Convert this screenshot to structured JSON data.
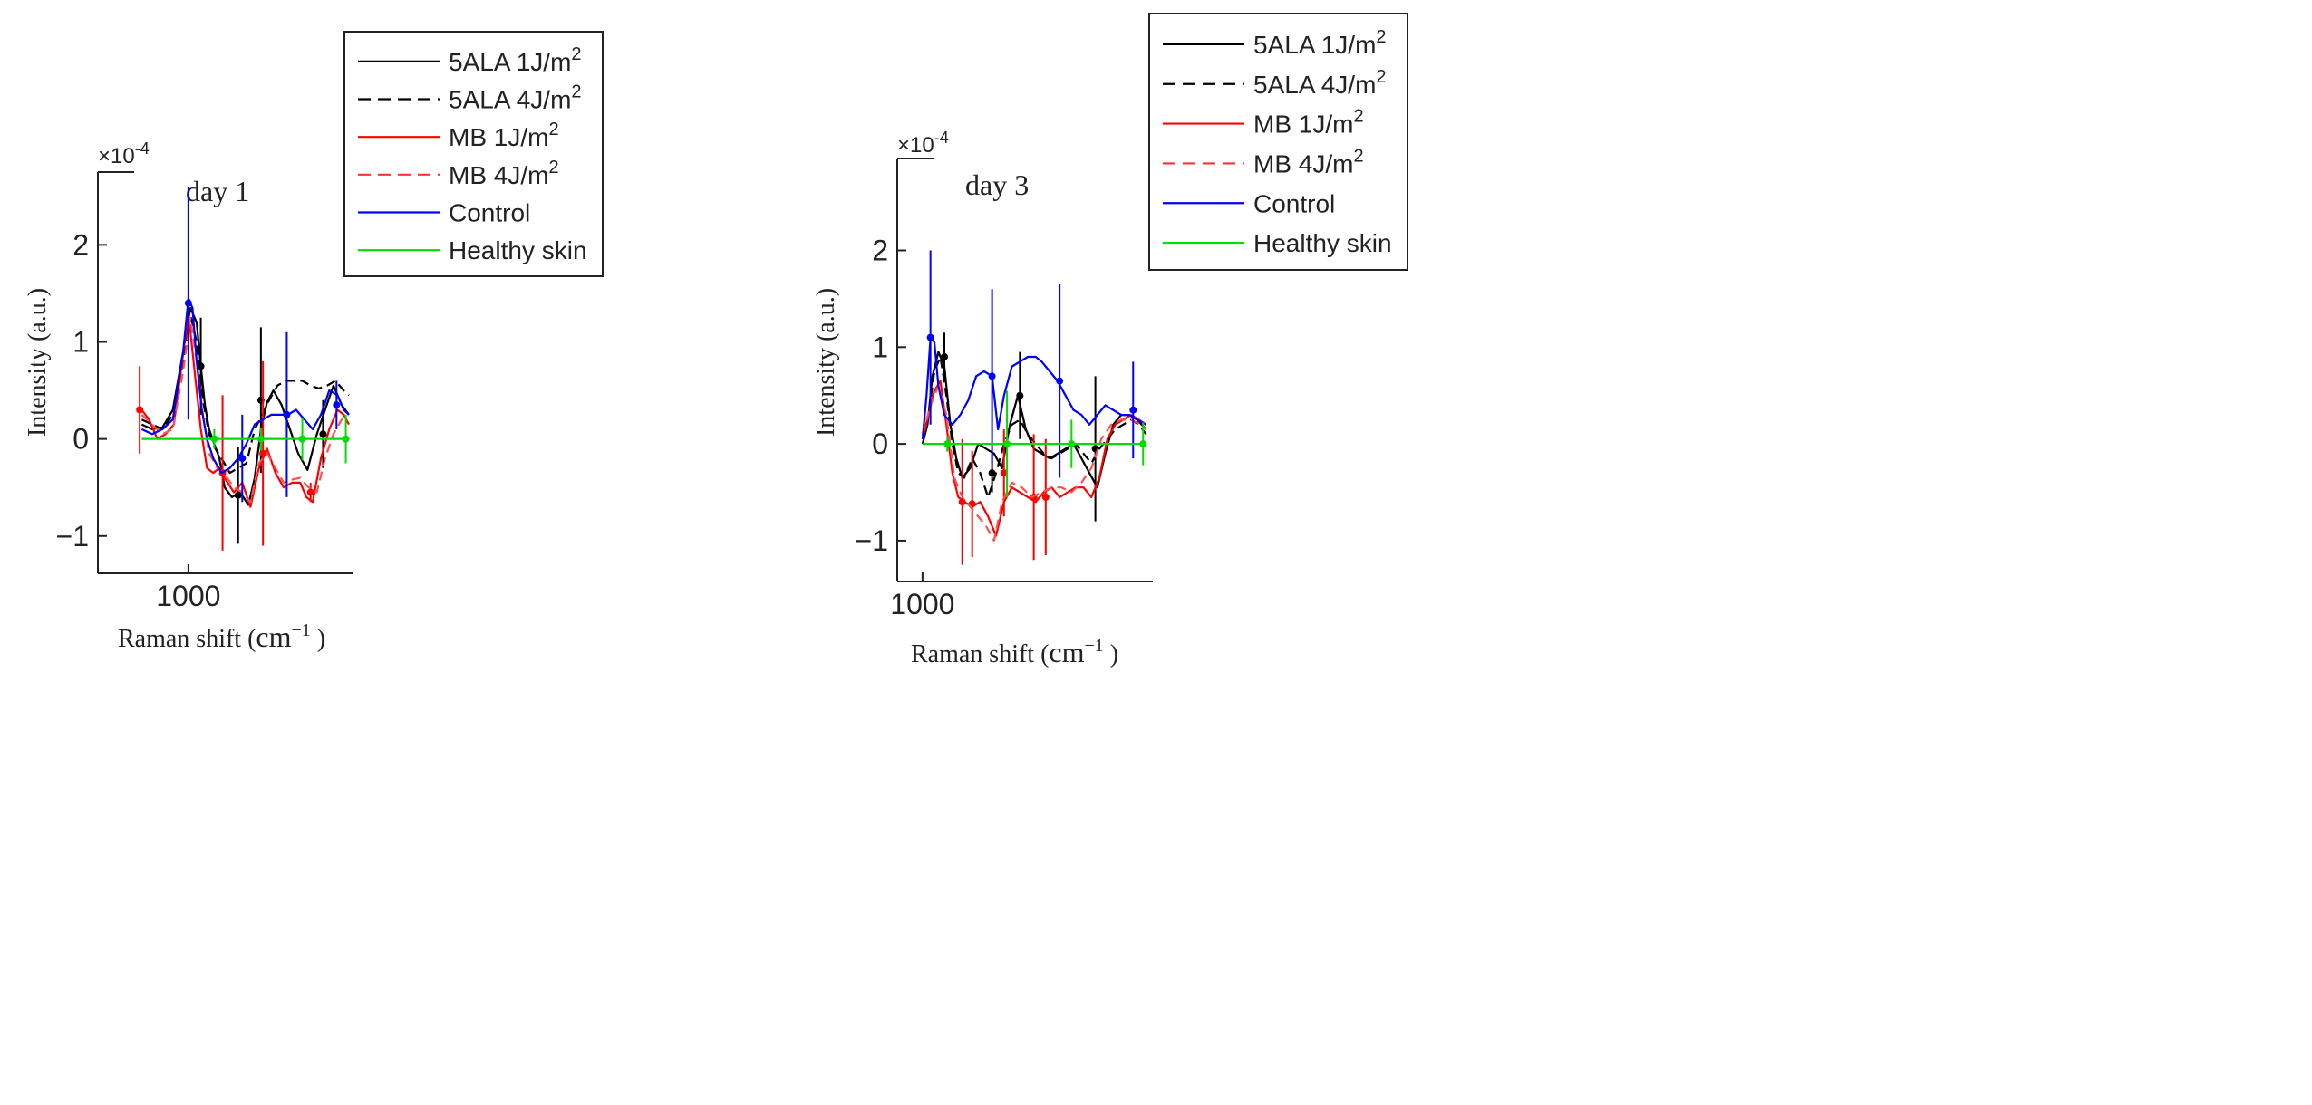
{
  "chart_data": [
    {
      "type": "line",
      "panel_label": "day 1",
      "multiplier_base": "×10",
      "multiplier_exp": "-4",
      "xlabel_main": "Raman shift (",
      "xlabel_unit": "cm",
      "xlabel_exp": "−1",
      "xlabel_close": " )",
      "ylabel": "Intensity (a.u.)",
      "xlim": [
        945,
        1155
      ],
      "ylim": [
        -1.45,
        2.75
      ],
      "xticks": [
        {
          "value": 1000,
          "label": "1000"
        }
      ],
      "yticks": [
        {
          "value": 2,
          "label": "2"
        },
        {
          "value": 1,
          "label": "1"
        },
        {
          "value": 0,
          "label": "0"
        },
        {
          "value": -1,
          "label": "−1"
        }
      ],
      "legend": [
        {
          "name": "5ALA 1J/m",
          "sup": "2",
          "color": "#000000",
          "dash": "solid"
        },
        {
          "name": "5ALA 4J/m",
          "sup": "2",
          "color": "#000000",
          "dash": "dashed"
        },
        {
          "name": "MB 1J/m",
          "sup": "2",
          "color": "#ff0000",
          "dash": "solid"
        },
        {
          "name": "MB 4J/m",
          "sup": "2",
          "color": "#ff3333",
          "dash": "dashed"
        },
        {
          "name": "Control",
          "sup": "",
          "color": "#0000ff",
          "dash": "solid"
        },
        {
          "name": "Healthy skin",
          "sup": "",
          "color": "#00e000",
          "dash": "solid"
        }
      ],
      "series": [
        {
          "name": "5ALA 1J/m2",
          "color": "#000000",
          "dash": "solid",
          "x": [
            955,
            965,
            975,
            985,
            995,
            1002,
            1008,
            1012,
            1016,
            1020,
            1025,
            1030,
            1035,
            1042,
            1050,
            1058,
            1064,
            1070,
            1076,
            1082,
            1090,
            1098,
            1106,
            1115,
            1124,
            1132,
            1140,
            1148,
            1155
          ],
          "y": [
            0.15,
            0.1,
            0.12,
            0.3,
            0.9,
            1.35,
            1.2,
            0.75,
            0.35,
            0.1,
            -0.05,
            -0.2,
            -0.5,
            -0.6,
            -0.55,
            -0.68,
            -0.4,
            0.1,
            0.38,
            0.5,
            0.35,
            0.1,
            -0.15,
            -0.32,
            0.05,
            0.3,
            0.55,
            0.35,
            0.25
          ],
          "error_x": [
            1012,
            1048,
            1070,
            1130
          ],
          "error_y": [
            0.75,
            -0.58,
            0.4,
            0.05
          ],
          "error_size": [
            0.5,
            0.5,
            0.75,
            0.35
          ]
        },
        {
          "name": "5ALA 4J/m2",
          "color": "#000000",
          "dash": "dashed",
          "x": [
            955,
            965,
            975,
            985,
            995,
            1002,
            1008,
            1014,
            1020,
            1026,
            1032,
            1040,
            1048,
            1056,
            1064,
            1070,
            1078,
            1086,
            1094,
            1102,
            1110,
            1118,
            1126,
            1134,
            1142,
            1150,
            1155
          ],
          "y": [
            0.2,
            0.15,
            0.1,
            0.25,
            0.8,
            1.28,
            1.0,
            0.4,
            0.05,
            -0.1,
            -0.2,
            -0.35,
            -0.3,
            -0.25,
            0.1,
            0.22,
            0.4,
            0.55,
            0.6,
            0.6,
            0.6,
            0.55,
            0.52,
            0.55,
            0.6,
            0.5,
            0.45
          ],
          "error_x": [],
          "error_y": [],
          "error_size": []
        },
        {
          "name": "MB 1J/m2",
          "color": "#ff0000",
          "dash": "solid",
          "x": [
            955,
            962,
            970,
            978,
            986,
            994,
            1000,
            1006,
            1012,
            1018,
            1024,
            1030,
            1036,
            1044,
            1052,
            1060,
            1068,
            1076,
            1084,
            1092,
            1100,
            1108,
            1114,
            1120,
            1128,
            1136,
            1144,
            1150,
            1155
          ],
          "y": [
            0.3,
            0.2,
            0.0,
            0.05,
            0.15,
            0.8,
            1.3,
            0.7,
            0.1,
            -0.3,
            -0.35,
            -0.3,
            -0.42,
            -0.55,
            -0.45,
            -0.7,
            -0.3,
            -0.1,
            -0.35,
            -0.5,
            -0.45,
            -0.45,
            -0.6,
            -0.65,
            -0.2,
            0.1,
            0.3,
            0.25,
            0.15
          ],
          "error_x": [
            953,
            1033,
            1072,
            1118
          ],
          "error_y": [
            0.3,
            -0.35,
            -0.15,
            -0.55
          ],
          "error_size": [
            0.45,
            0.8,
            0.95,
            0.1
          ]
        },
        {
          "name": "MB 4J/m2",
          "color": "#ff5050",
          "dash": "dashed",
          "x": [
            955,
            965,
            975,
            985,
            995,
            1002,
            1008,
            1014,
            1020,
            1028,
            1036,
            1044,
            1052,
            1060,
            1068,
            1076,
            1084,
            1092,
            1100,
            1108,
            1116,
            1124,
            1132,
            1140,
            1148,
            1155
          ],
          "y": [
            0.25,
            0.15,
            0.05,
            0.1,
            0.7,
            1.25,
            0.8,
            0.25,
            -0.15,
            -0.3,
            -0.38,
            -0.5,
            -0.55,
            -0.65,
            -0.25,
            -0.15,
            -0.3,
            -0.45,
            -0.42,
            -0.4,
            -0.5,
            -0.55,
            -0.2,
            0.05,
            0.2,
            0.2
          ],
          "error_x": [],
          "error_y": [],
          "error_size": []
        },
        {
          "name": "Control",
          "color": "#0000ff",
          "dash": "solid",
          "x": [
            955,
            965,
            975,
            985,
            995,
            1000,
            1004,
            1008,
            1013,
            1018,
            1024,
            1032,
            1040,
            1048,
            1056,
            1064,
            1072,
            1080,
            1088,
            1096,
            1104,
            1112,
            1120,
            1128,
            1136,
            1144,
            1150,
            1155
          ],
          "y": [
            0.1,
            0.05,
            0.1,
            0.2,
            0.9,
            1.45,
            1.35,
            0.8,
            0.3,
            0.0,
            -0.2,
            -0.35,
            -0.3,
            -0.2,
            -0.05,
            0.15,
            0.2,
            0.25,
            0.25,
            0.25,
            0.3,
            0.2,
            0.1,
            0.25,
            0.5,
            0.45,
            0.3,
            0.25
          ],
          "error_x": [
            1000,
            1052,
            1095,
            1143
          ],
          "error_y": [
            1.4,
            -0.2,
            0.25,
            0.35
          ],
          "error_size": [
            1.2,
            0.45,
            0.85,
            0.25
          ]
        },
        {
          "name": "Healthy skin",
          "color": "#00dd00",
          "dash": "solid",
          "x": [
            955,
            1155
          ],
          "y": [
            0,
            0
          ],
          "error_x": [
            1025,
            1070,
            1110,
            1152
          ],
          "error_y": [
            0,
            0,
            0,
            0
          ],
          "error_size": [
            0.1,
            0.12,
            0.22,
            0.25
          ]
        }
      ]
    },
    {
      "type": "line",
      "panel_label": "day 3",
      "multiplier_base": "×10",
      "multiplier_exp": "-4",
      "xlabel_main": "Raman shift (",
      "xlabel_unit": "cm",
      "xlabel_exp": "−1",
      "xlabel_close": " )",
      "ylabel": "Intensity (a.u.)",
      "xlim": [
        970,
        1230
      ],
      "ylim": [
        -1.45,
        2.95
      ],
      "xticks": [
        {
          "value": 1000,
          "label": "1000"
        }
      ],
      "yticks": [
        {
          "value": 2,
          "label": "2"
        },
        {
          "value": 1,
          "label": "1"
        },
        {
          "value": 0,
          "label": "0"
        },
        {
          "value": -1,
          "label": "−1"
        }
      ],
      "legend": [
        {
          "name": "5ALA 1J/m",
          "sup": "2",
          "color": "#000000",
          "dash": "solid"
        },
        {
          "name": "5ALA 4J/m",
          "sup": "2",
          "color": "#000000",
          "dash": "dashed"
        },
        {
          "name": "MB 1J/m",
          "sup": "2",
          "color": "#ff0000",
          "dash": "solid"
        },
        {
          "name": "MB 4J/m",
          "sup": "2",
          "color": "#ff3333",
          "dash": "dashed"
        },
        {
          "name": "Control",
          "sup": "",
          "color": "#0000ff",
          "dash": "solid"
        },
        {
          "name": "Healthy skin",
          "sup": "",
          "color": "#00e000",
          "dash": "solid"
        }
      ],
      "series": [
        {
          "name": "5ALA 1J/m2",
          "color": "#000000",
          "dash": "solid",
          "x": [
            1000,
            1005,
            1010,
            1016,
            1022,
            1028,
            1034,
            1040,
            1048,
            1056,
            1064,
            1072,
            1080,
            1088,
            1096,
            1104,
            1112,
            1120,
            1128,
            1136,
            1144,
            1152,
            1160,
            1168,
            1176,
            1184,
            1192,
            1200,
            1208,
            1216,
            1225
          ],
          "y": [
            0.0,
            0.2,
            0.7,
            0.95,
            0.8,
            0.2,
            -0.15,
            -0.35,
            -0.25,
            0.0,
            -0.05,
            -0.1,
            -0.25,
            0.2,
            0.5,
            0.15,
            -0.05,
            -0.1,
            -0.15,
            -0.1,
            -0.05,
            0.0,
            -0.15,
            -0.3,
            -0.45,
            -0.1,
            0.2,
            0.3,
            0.3,
            0.25,
            0.15
          ],
          "error_x": [
            1022,
            1098,
            1174
          ],
          "error_y": [
            0.9,
            0.5,
            -0.05
          ],
          "error_size": [
            0.25,
            0.45,
            0.75
          ]
        },
        {
          "name": "5ALA 4J/m2",
          "color": "#000000",
          "dash": "dashed",
          "x": [
            1000,
            1006,
            1012,
            1018,
            1024,
            1030,
            1036,
            1042,
            1050,
            1058,
            1066,
            1074,
            1082,
            1090,
            1098,
            1106,
            1114,
            1122,
            1130,
            1138,
            1146,
            1154,
            1162,
            1170,
            1178,
            1186,
            1194,
            1202,
            1210,
            1218,
            1225
          ],
          "y": [
            0.05,
            0.3,
            0.75,
            0.9,
            0.5,
            0.0,
            -0.3,
            -0.35,
            -0.15,
            -0.3,
            -0.55,
            -0.3,
            0.0,
            0.2,
            0.25,
            0.1,
            0.0,
            -0.1,
            -0.15,
            -0.1,
            -0.05,
            0.0,
            -0.1,
            -0.2,
            -0.05,
            0.05,
            0.15,
            0.2,
            0.25,
            0.2,
            0.1
          ],
          "error_x": [
            1070
          ],
          "error_y": [
            -0.3
          ],
          "error_size": [
            0.2
          ]
        },
        {
          "name": "MB 1J/m2",
          "color": "#ff0000",
          "dash": "solid",
          "x": [
            1000,
            1006,
            1012,
            1018,
            1024,
            1030,
            1036,
            1042,
            1050,
            1058,
            1066,
            1074,
            1082,
            1090,
            1098,
            1106,
            1114,
            1122,
            1130,
            1138,
            1146,
            1154,
            1162,
            1170,
            1178,
            1186,
            1194,
            1202,
            1210,
            1218,
            1225
          ],
          "y": [
            0.05,
            0.3,
            0.55,
            0.65,
            0.2,
            -0.3,
            -0.55,
            -0.6,
            -0.65,
            -0.6,
            -0.75,
            -0.95,
            -0.6,
            -0.45,
            -0.5,
            -0.55,
            -0.6,
            -0.5,
            -0.45,
            -0.55,
            -0.5,
            -0.45,
            -0.45,
            -0.55,
            -0.35,
            0.05,
            0.2,
            0.25,
            0.3,
            0.25,
            0.2
          ],
          "error_x": [
            1040,
            1050,
            1082,
            1112,
            1124
          ],
          "error_y": [
            -0.6,
            -0.62,
            -0.3,
            -0.55,
            -0.55
          ],
          "error_size": [
            0.65,
            0.55,
            0.45,
            0.65,
            0.6
          ]
        },
        {
          "name": "MB 4J/m2",
          "color": "#ff5050",
          "dash": "dashed",
          "x": [
            1000,
            1008,
            1016,
            1024,
            1032,
            1040,
            1048,
            1056,
            1064,
            1072,
            1080,
            1090,
            1100,
            1110,
            1120,
            1130,
            1140,
            1150,
            1160,
            1170,
            1180,
            1190,
            1200,
            1210,
            1220,
            1225
          ],
          "y": [
            0.1,
            0.4,
            0.6,
            0.3,
            -0.35,
            -0.55,
            -0.65,
            -0.75,
            -0.85,
            -1.0,
            -0.6,
            -0.4,
            -0.45,
            -0.55,
            -0.5,
            -0.45,
            -0.45,
            -0.5,
            -0.4,
            -0.25,
            0.05,
            0.2,
            0.25,
            0.25,
            0.2,
            0.15
          ],
          "error_x": [],
          "error_y": [],
          "error_size": []
        },
        {
          "name": "Control",
          "color": "#0000ff",
          "dash": "solid",
          "x": [
            1000,
            1004,
            1008,
            1012,
            1016,
            1022,
            1030,
            1038,
            1046,
            1054,
            1062,
            1070,
            1076,
            1082,
            1090,
            1098,
            1106,
            1114,
            1120,
            1128,
            1136,
            1144,
            1152,
            1160,
            1168,
            1176,
            1184,
            1192,
            1200,
            1208,
            1216,
            1225
          ],
          "y": [
            0.05,
            0.5,
            1.1,
            1.05,
            0.6,
            0.3,
            0.2,
            0.3,
            0.45,
            0.7,
            0.75,
            0.7,
            0.15,
            0.5,
            0.8,
            0.85,
            0.9,
            0.9,
            0.85,
            0.75,
            0.65,
            0.5,
            0.35,
            0.3,
            0.2,
            0.3,
            0.4,
            0.35,
            0.3,
            0.3,
            0.25,
            0.2
          ],
          "error_x": [
            1008,
            1070,
            1138,
            1212
          ],
          "error_y": [
            1.1,
            0.7,
            0.65,
            0.35
          ],
          "error_size": [
            0.9,
            0.9,
            1.0,
            0.5
          ]
        },
        {
          "name": "Healthy skin",
          "color": "#00dd00",
          "dash": "solid",
          "x": [
            1000,
            1225
          ],
          "y": [
            0,
            0
          ],
          "error_x": [
            1025,
            1085,
            1150,
            1222
          ],
          "error_y": [
            0,
            0,
            0,
            0
          ],
          "error_size": [
            0.08,
            0.55,
            0.25,
            0.22
          ]
        }
      ]
    }
  ]
}
